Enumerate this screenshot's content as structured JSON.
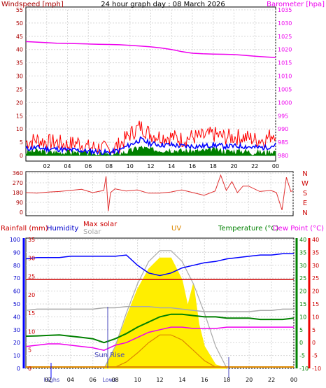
{
  "chart_data": [
    {
      "type": "line",
      "title": "24 hour graph day : 08 March 2026",
      "ylabel_left": "Windspeed [mph]",
      "ylabel_right": "Barometer [hpa]",
      "ylim_left": [
        0,
        55
      ],
      "ylim_right": [
        980,
        1035
      ],
      "left_ticks": [
        "0",
        "5",
        "10",
        "15",
        "20",
        "25",
        "30",
        "35",
        "40",
        "45",
        "50",
        "55"
      ],
      "right_ticks": [
        "980",
        "985",
        "990",
        "995",
        "1000",
        "1005",
        "1010",
        "1015",
        "1020",
        "1025",
        "1030",
        "1035"
      ],
      "x_ticks": [
        "02",
        "04",
        "06",
        "08",
        "10",
        "12",
        "14",
        "16",
        "18",
        "20",
        "22",
        "00"
      ],
      "colors": {
        "gust": "#ff0000",
        "avg": "#0000ff",
        "low": "#008000",
        "baro": "#ee00ee",
        "left_axis": "#aa0000"
      },
      "series": [
        {
          "key": "baro",
          "x": [
            0,
            1,
            2,
            3,
            4,
            5,
            6,
            7,
            8,
            9,
            10,
            11,
            12,
            13,
            14,
            15,
            16,
            17,
            18,
            19,
            20,
            21,
            22,
            23,
            24
          ],
          "values": [
            1023,
            1022.8,
            1022.6,
            1022.4,
            1022.3,
            1022.2,
            1022.1,
            1022.0,
            1021.9,
            1021.8,
            1021.6,
            1021.3,
            1021.0,
            1020.6,
            1020.0,
            1019.2,
            1018.6,
            1018.4,
            1018.3,
            1018.2,
            1018.1,
            1017.8,
            1017.5,
            1017.2,
            1017.0
          ]
        },
        {
          "key": "gust",
          "x": [
            0,
            1,
            2,
            3,
            4,
            5,
            6,
            7,
            8,
            9,
            10,
            11,
            12,
            13,
            14,
            15,
            16,
            17,
            18,
            19,
            20,
            21,
            22,
            23,
            24
          ],
          "values": [
            5,
            6,
            5,
            5,
            4,
            5,
            3,
            3,
            2,
            4,
            8,
            11,
            8,
            7,
            7,
            6,
            7,
            7,
            8,
            7,
            7,
            7,
            6,
            6,
            9
          ]
        },
        {
          "key": "avg",
          "x": [
            0,
            1,
            2,
            3,
            4,
            5,
            6,
            7,
            8,
            9,
            10,
            11,
            12,
            13,
            14,
            15,
            16,
            17,
            18,
            19,
            20,
            21,
            22,
            23,
            24
          ],
          "values": [
            2.5,
            3,
            2.5,
            2.5,
            2,
            2,
            1.5,
            1.5,
            1,
            2,
            4,
            6,
            4.5,
            4,
            4,
            3.5,
            3.5,
            3.5,
            4,
            3.5,
            3.5,
            3.5,
            3,
            3,
            4
          ]
        },
        {
          "key": "low",
          "x": [
            0,
            1,
            2,
            3,
            4,
            5,
            6,
            7,
            8,
            9,
            10,
            11,
            12,
            13,
            14,
            15,
            16,
            17,
            18,
            19,
            20,
            21,
            22,
            23,
            24
          ],
          "values": [
            1,
            1.5,
            1,
            1,
            1,
            1,
            0.5,
            0.5,
            0,
            0.5,
            1.5,
            3,
            2,
            2,
            2,
            1.5,
            1.5,
            1.5,
            2,
            1.5,
            1.5,
            1.5,
            1,
            1,
            1.5
          ]
        }
      ]
    },
    {
      "type": "scatter",
      "ylabel_right": [
        "N",
        "W",
        "S",
        "E",
        "N"
      ],
      "ylim": [
        0,
        360
      ],
      "left_ticks": [
        "0",
        "90",
        "180",
        "270",
        "360"
      ],
      "x_ticks": [
        "02",
        "04",
        "06",
        "08",
        "10",
        "12",
        "14",
        "16",
        "18",
        "20",
        "22",
        "00"
      ],
      "colors": {
        "dir": "#e03030"
      },
      "series": [
        {
          "key": "dir",
          "x": [
            0,
            1,
            2,
            3,
            4,
            5,
            6,
            7,
            7.2,
            7.4,
            7.6,
            8,
            9,
            10,
            11,
            12,
            13,
            14,
            15,
            16,
            17,
            17.5,
            18,
            18.5,
            19,
            19.5,
            20,
            21,
            22,
            22.5,
            23,
            23.4,
            23.8,
            24
          ],
          "values": [
            180,
            175,
            185,
            190,
            200,
            210,
            180,
            200,
            330,
            10,
            180,
            215,
            195,
            205,
            175,
            175,
            185,
            205,
            180,
            155,
            195,
            340,
            200,
            280,
            180,
            240,
            240,
            190,
            200,
            180,
            20,
            320,
            190,
            200
          ]
        }
      ]
    },
    {
      "type": "area",
      "labels": {
        "rain": "Rainfall (mm)",
        "humidity": "Humidity",
        "maxsolar": "Max solar",
        "solar": "Solar",
        "uv": "UV",
        "temp": "Temperature (°C)",
        "dew": "Dew Point (°C)"
      },
      "humidity_ticks": [
        "0",
        "10",
        "20",
        "30",
        "40",
        "50",
        "60",
        "70",
        "80",
        "90",
        "100"
      ],
      "rain_ticks": [
        "0",
        "5",
        "10",
        "15",
        "20",
        "25",
        "30",
        "35"
      ],
      "temp_ticks": [
        "-10",
        "-5",
        "0",
        "5",
        "10",
        "15",
        "20",
        "25",
        "30",
        "35",
        "40"
      ],
      "x_ticks": [
        "02",
        "04",
        "06",
        "08",
        "10",
        "12",
        "14",
        "16",
        "18",
        "20",
        "22",
        "00"
      ],
      "x_ticks_bottom": [
        "Highs",
        "02",
        "04",
        "06",
        "Lows",
        "08",
        "10",
        "12",
        "14",
        "16",
        "18",
        "20",
        "22",
        "00"
      ],
      "annotation": "Sun Rise",
      "humidity_range": [
        0,
        100
      ],
      "temp_range": [
        -10,
        40
      ],
      "colors": {
        "humidity": "#0000ff",
        "rain": "#cc0000",
        "temp": "#008000",
        "dew": "#ee00ee",
        "solar": "#ffee00",
        "maxsolar": "#aaaaaa",
        "uv": "#dd8800",
        "grey": "#aaaaaa"
      },
      "series": [
        {
          "key": "humidity",
          "x": [
            0,
            1,
            2,
            3,
            4,
            5,
            6,
            7,
            8,
            9,
            10,
            11,
            12,
            13,
            14,
            15,
            16,
            17,
            18,
            19,
            20,
            21,
            22,
            23,
            24
          ],
          "values": [
            85,
            86,
            86,
            86,
            87,
            87,
            87,
            87,
            87,
            88,
            80,
            74,
            72,
            74,
            78,
            80,
            82,
            83,
            85,
            86,
            87,
            88,
            88,
            89,
            89
          ]
        },
        {
          "key": "rainline",
          "x": [
            0,
            24
          ],
          "values": [
            69,
            69
          ]
        },
        {
          "key": "grey",
          "x": [
            0,
            1,
            2,
            3,
            4,
            5,
            6,
            7,
            8,
            9,
            10,
            11,
            12,
            13,
            14,
            15,
            16,
            17,
            18,
            19,
            20,
            21,
            22,
            23,
            24
          ],
          "values": [
            45,
            46,
            46,
            46,
            46,
            46,
            46,
            47,
            47,
            48,
            48,
            48,
            47,
            47,
            46,
            45,
            44,
            44,
            44,
            44,
            44,
            45,
            45,
            46,
            46
          ]
        },
        {
          "key": "temp",
          "x": [
            0,
            1,
            2,
            3,
            4,
            5,
            6,
            7,
            8,
            9,
            10,
            11,
            12,
            13,
            14,
            15,
            16,
            17,
            18,
            19,
            20,
            21,
            22,
            23,
            24
          ],
          "values": [
            2.5,
            2.6,
            2.8,
            3,
            2.5,
            2,
            1.5,
            0,
            1.5,
            3.5,
            6,
            8,
            10,
            11,
            11,
            10.5,
            10,
            10,
            9.5,
            9.5,
            9.5,
            9,
            9,
            9,
            9.5
          ]
        },
        {
          "key": "dew",
          "x": [
            0,
            1,
            2,
            3,
            4,
            5,
            6,
            7,
            8,
            9,
            10,
            11,
            12,
            13,
            14,
            15,
            16,
            17,
            18,
            19,
            20,
            21,
            22,
            23,
            24
          ],
          "values": [
            -1.5,
            -1,
            -0.5,
            -0.5,
            -1,
            -1.5,
            -2,
            -3,
            -1,
            0,
            2,
            4,
            5,
            6,
            6,
            5.5,
            5.5,
            5.5,
            6,
            6,
            6,
            6,
            6,
            6,
            6
          ]
        },
        {
          "key": "maxsolar",
          "x": [
            7,
            8,
            9,
            10,
            11,
            12,
            13,
            14,
            15,
            16,
            17,
            18
          ],
          "values": [
            0,
            60,
            150,
            230,
            290,
            320,
            320,
            290,
            230,
            150,
            60,
            0
          ]
        },
        {
          "key": "solar",
          "x": [
            7,
            8,
            9,
            10,
            11,
            12,
            13,
            14,
            14.5,
            15,
            15.5,
            16,
            17,
            18
          ],
          "values": [
            0,
            55,
            140,
            215,
            270,
            300,
            300,
            240,
            170,
            230,
            120,
            60,
            10,
            0
          ]
        },
        {
          "key": "uv",
          "x": [
            8,
            9,
            10,
            11,
            12,
            13,
            14,
            15,
            16,
            17
          ],
          "values": [
            0.1,
            0.5,
            1.2,
            2.0,
            2.6,
            2.6,
            2.2,
            1.4,
            0.6,
            0.1
          ]
        }
      ]
    }
  ]
}
